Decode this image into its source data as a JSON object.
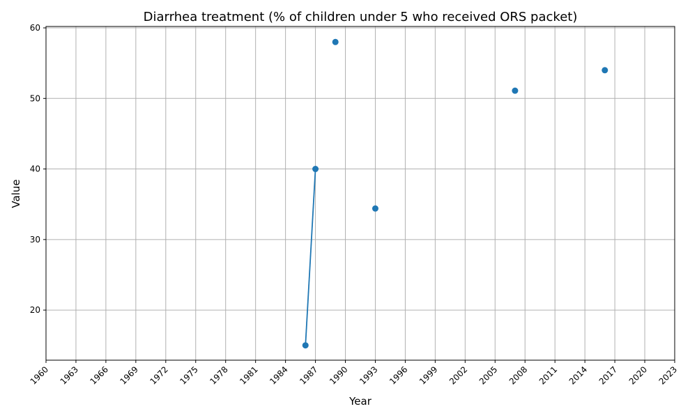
{
  "chart_data": {
    "type": "line",
    "title": "Diarrhea treatment (% of children under 5 who received ORS packet)",
    "xlabel": "Year",
    "ylabel": "Value",
    "xlim": [
      1960,
      2023
    ],
    "ylim": [
      12.9,
      60.2
    ],
    "xticks": [
      1960,
      1963,
      1966,
      1969,
      1972,
      1975,
      1978,
      1981,
      1984,
      1987,
      1990,
      1993,
      1996,
      1999,
      2002,
      2005,
      2008,
      2011,
      2014,
      2017,
      2020,
      2023
    ],
    "yticks": [
      20,
      30,
      40,
      50,
      60
    ],
    "grid": true,
    "series": [
      {
        "color": "#1f77b4",
        "points": [
          {
            "x": 1986,
            "y": 15.0
          },
          {
            "x": 1987,
            "y": 40.0
          },
          {
            "x": 1989,
            "y": 58.0
          },
          {
            "x": 1993,
            "y": 34.4
          },
          {
            "x": 2007,
            "y": 51.1
          },
          {
            "x": 2016,
            "y": 54.0
          }
        ],
        "segments": [
          [
            0,
            1
          ]
        ]
      }
    ]
  }
}
